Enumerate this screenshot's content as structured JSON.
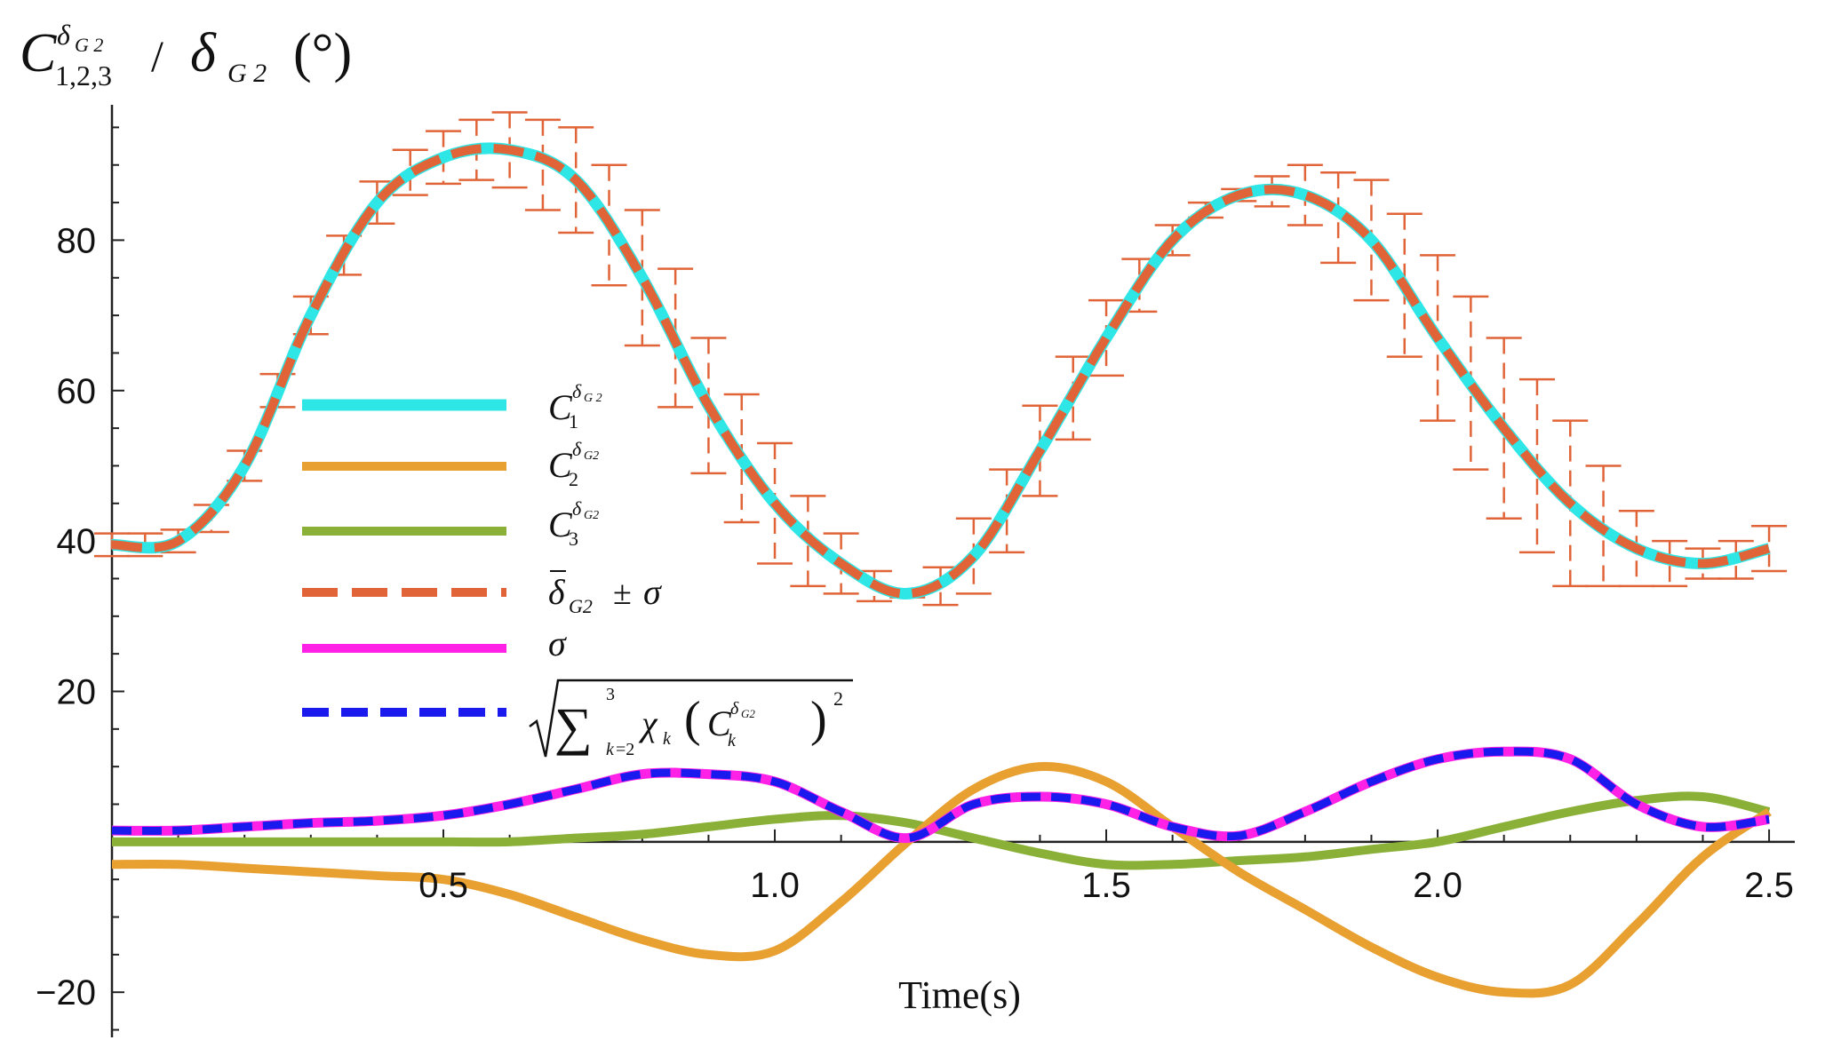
{
  "chart_data": {
    "type": "line",
    "title": "",
    "xlabel": "Time(s)",
    "ylabel": "C_{1,2,3}^{δG2} / δ_{G2}(°)",
    "xlim": [
      0,
      2.52
    ],
    "ylim": [
      -26,
      98
    ],
    "xticks": [
      0.5,
      1.0,
      1.5,
      2.0,
      2.5
    ],
    "xtick_labels": [
      "0.5",
      "1.0",
      "1.5",
      "2.0",
      "2.5"
    ],
    "yticks": [
      -20,
      20,
      40,
      60,
      80
    ],
    "ytick_labels": [
      "−20",
      "20",
      "40",
      "60",
      "80"
    ],
    "legend_position": "center-left",
    "legend": [
      "C1^δG2",
      "C2^δG2",
      "C3^δG2",
      "δ̄G2 ± σ",
      "σ",
      "sqrt(Σ_{k=2}^{3} χ_k (C_k^δG2)^2)"
    ],
    "x": [
      0,
      0.1,
      0.2,
      0.3,
      0.4,
      0.5,
      0.6,
      0.7,
      0.8,
      0.9,
      1.0,
      1.1,
      1.2,
      1.3,
      1.4,
      1.5,
      1.6,
      1.7,
      1.8,
      1.9,
      2.0,
      2.1,
      2.2,
      2.3,
      2.4,
      2.5
    ],
    "series": [
      {
        "name": "C1",
        "color": "#2fe6e6",
        "dash": "",
        "width": 13,
        "values": [
          39.5,
          40,
          50,
          70,
          85,
          91,
          92,
          88,
          75,
          58,
          45,
          37,
          33,
          38,
          52,
          67,
          80,
          86,
          86,
          80,
          67,
          55,
          45,
          39,
          37,
          39
        ]
      },
      {
        "name": "C2",
        "color": "#e8a030",
        "dash": "",
        "width": 10,
        "values": [
          -3,
          -3,
          -3.5,
          -4,
          -4.5,
          -5,
          -7,
          -10,
          -13,
          -15,
          -14.5,
          -8,
          0,
          7,
          10,
          8,
          2,
          -4,
          -9,
          -14,
          -18,
          -20,
          -19,
          -11,
          -2,
          4
        ]
      },
      {
        "name": "C3",
        "color": "#8ab038",
        "dash": "",
        "width": 10,
        "values": [
          0,
          0,
          0,
          0,
          0,
          0,
          0,
          0.5,
          1,
          2,
          3,
          3.5,
          2.5,
          0.5,
          -1.5,
          -3,
          -3,
          -2.5,
          -2,
          -1,
          0,
          2,
          4,
          5.5,
          6,
          4
        ]
      },
      {
        "name": "δ̄G2",
        "color": "#e06438",
        "dash": "34 14",
        "width": 10,
        "values": [
          39.5,
          40,
          50,
          70,
          85,
          91,
          92,
          88,
          75,
          58,
          45,
          37,
          33,
          38,
          52,
          67,
          80,
          86,
          86,
          80,
          67,
          55,
          45,
          39,
          37,
          39
        ]
      },
      {
        "name": "σ",
        "color": "#ff22e6",
        "dash": "",
        "width": 11,
        "values": [
          1.5,
          1.5,
          2,
          2.5,
          2.8,
          3.5,
          5,
          7,
          9,
          9,
          8,
          4,
          0.5,
          5,
          6,
          5,
          2,
          0.8,
          4,
          8,
          11,
          12,
          11,
          5,
          2,
          3
        ]
      },
      {
        "name": "sqrt(Σχk(Ck)^2)",
        "color": "#1a1aee",
        "dash": "22 12",
        "width": 9,
        "values": [
          1.5,
          1.5,
          2,
          2.5,
          2.8,
          3.5,
          5,
          7,
          9,
          9,
          8,
          4,
          0.5,
          5,
          6,
          5,
          2,
          0.8,
          4,
          8,
          11,
          12,
          11,
          5,
          2,
          3
        ]
      }
    ],
    "error_bars": {
      "name": "δ̄G2 ± σ",
      "color": "#e06438",
      "x": [
        0,
        0.05,
        0.1,
        0.15,
        0.2,
        0.25,
        0.3,
        0.35,
        0.4,
        0.45,
        0.5,
        0.55,
        0.6,
        0.65,
        0.7,
        0.75,
        0.8,
        0.85,
        0.9,
        0.95,
        1.0,
        1.05,
        1.1,
        1.15,
        1.2,
        1.25,
        1.3,
        1.35,
        1.4,
        1.45,
        1.5,
        1.55,
        1.6,
        1.65,
        1.7,
        1.75,
        1.8,
        1.85,
        1.9,
        1.95,
        2.0,
        2.05,
        2.1,
        2.15,
        2.2,
        2.25,
        2.3,
        2.35,
        2.4,
        2.45,
        2.5
      ],
      "center": [
        39.5,
        39.5,
        40,
        43,
        50,
        60,
        70,
        78,
        85,
        89,
        91,
        92,
        92,
        90,
        88,
        82,
        75,
        67,
        58,
        51,
        45,
        40,
        37,
        34,
        33,
        34,
        38,
        44,
        52,
        59,
        67,
        74,
        80,
        84,
        86,
        86.5,
        86,
        83,
        80,
        74,
        67,
        61,
        55,
        50,
        45,
        42,
        39,
        37,
        37,
        37.5,
        39
      ],
      "sigma": [
        1.5,
        1.5,
        1.5,
        1.8,
        2,
        2.2,
        2.5,
        2.6,
        2.8,
        3,
        3.5,
        4,
        5,
        6,
        7,
        8,
        9,
        9.2,
        9,
        8.5,
        8,
        6,
        4,
        2,
        0.5,
        2.5,
        5,
        5.5,
        6,
        5.5,
        5,
        3.5,
        2,
        1,
        0.8,
        2,
        4,
        6,
        8,
        9.5,
        11,
        11.5,
        12,
        11.5,
        11,
        8,
        5,
        3,
        2,
        2.5,
        3
      ]
    }
  }
}
